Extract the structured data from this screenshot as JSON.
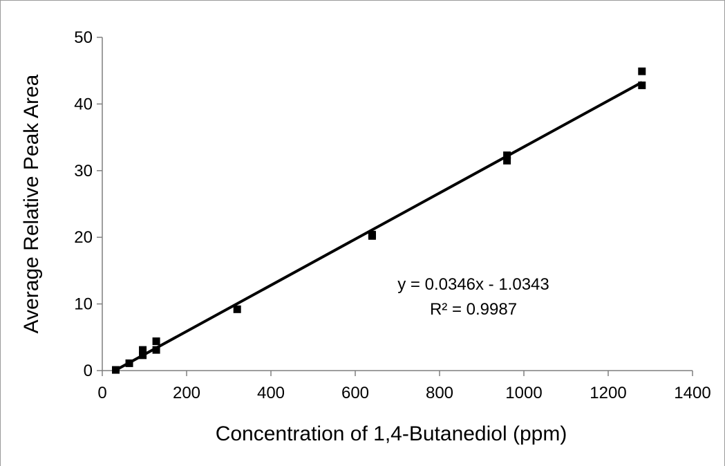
{
  "chart_data": {
    "type": "scatter",
    "xlabel": "Concentration of 1,4-Butanediol (ppm)",
    "ylabel": "Average Relative Peak Area",
    "xlim": [
      0,
      1400
    ],
    "ylim": [
      0,
      50
    ],
    "x_ticks": [
      "0",
      "200",
      "400",
      "600",
      "800",
      "1000",
      "1200",
      "1400"
    ],
    "y_ticks": [
      "0",
      "10",
      "20",
      "30",
      "40",
      "50"
    ],
    "grid": false,
    "legend": "none",
    "marker_color": "#000000",
    "line_color": "#000000",
    "points": [
      {
        "x": 32,
        "y": 0.1
      },
      {
        "x": 64,
        "y": 1.1
      },
      {
        "x": 96,
        "y": 2.3
      },
      {
        "x": 96,
        "y": 3.1
      },
      {
        "x": 128,
        "y": 3.1
      },
      {
        "x": 128,
        "y": 4.4
      },
      {
        "x": 320,
        "y": 9.2
      },
      {
        "x": 640,
        "y": 20.2
      },
      {
        "x": 640,
        "y": 20.4
      },
      {
        "x": 960,
        "y": 31.5
      },
      {
        "x": 960,
        "y": 32.3
      },
      {
        "x": 1280,
        "y": 42.8
      },
      {
        "x": 1280,
        "y": 44.9
      }
    ],
    "trendline": {
      "slope": 0.0346,
      "intercept": -1.0343,
      "x_range": [
        32,
        1280
      ]
    },
    "annotation": {
      "equation": "y = 0.0346x - 1.0343",
      "r_squared": "R² = 0.9987"
    }
  }
}
